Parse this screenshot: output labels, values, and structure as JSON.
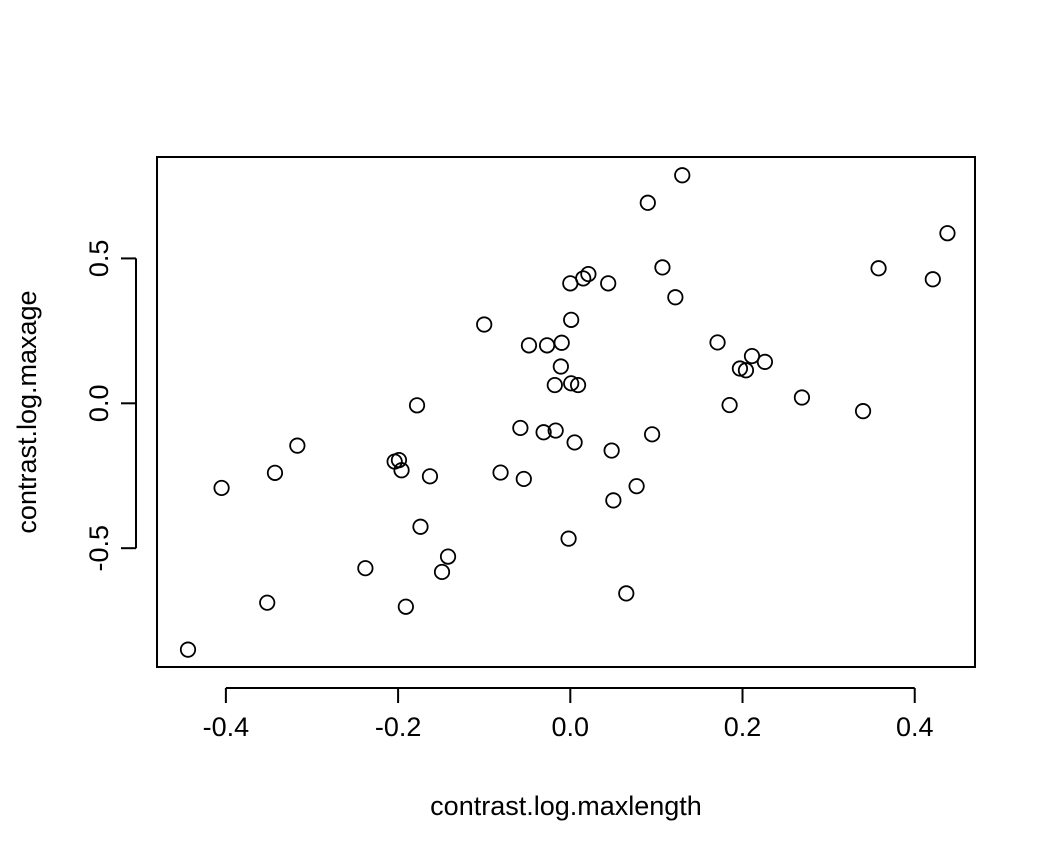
{
  "chart_data": {
    "type": "scatter",
    "title": "",
    "xlabel": "contrast.log.maxlength",
    "ylabel": "contrast.log.maxage",
    "xlim": [
      -0.48,
      0.47
    ],
    "ylim": [
      -0.91,
      0.85
    ],
    "xticks": [
      -0.4,
      -0.2,
      0.0,
      0.2,
      0.4
    ],
    "xtick_labels": [
      "-0.4",
      "-0.2",
      "0.0",
      "0.2",
      "0.4"
    ],
    "yticks": [
      -0.5,
      0.0,
      0.5
    ],
    "ytick_labels": [
      "-0.5",
      "0.0",
      "0.5"
    ],
    "grid": false,
    "legend": "none",
    "marker": "open-circle",
    "points": [
      {
        "x": -0.444,
        "y": -0.85
      },
      {
        "x": -0.405,
        "y": -0.292
      },
      {
        "x": -0.352,
        "y": -0.688
      },
      {
        "x": -0.343,
        "y": -0.24
      },
      {
        "x": -0.317,
        "y": -0.146
      },
      {
        "x": -0.238,
        "y": -0.569
      },
      {
        "x": -0.204,
        "y": -0.201
      },
      {
        "x": -0.199,
        "y": -0.196
      },
      {
        "x": -0.196,
        "y": -0.231
      },
      {
        "x": -0.191,
        "y": -0.702
      },
      {
        "x": -0.178,
        "y": -0.007
      },
      {
        "x": -0.174,
        "y": -0.426
      },
      {
        "x": -0.163,
        "y": -0.252
      },
      {
        "x": -0.149,
        "y": -0.582
      },
      {
        "x": -0.142,
        "y": -0.529
      },
      {
        "x": -0.1,
        "y": 0.272
      },
      {
        "x": -0.081,
        "y": -0.239
      },
      {
        "x": -0.058,
        "y": -0.085
      },
      {
        "x": -0.054,
        "y": -0.261
      },
      {
        "x": -0.048,
        "y": 0.2
      },
      {
        "x": -0.031,
        "y": -0.1
      },
      {
        "x": -0.027,
        "y": 0.2
      },
      {
        "x": -0.018,
        "y": 0.063
      },
      {
        "x": -0.017,
        "y": -0.094
      },
      {
        "x": -0.011,
        "y": 0.127
      },
      {
        "x": -0.01,
        "y": 0.209
      },
      {
        "x": -0.002,
        "y": -0.467
      },
      {
        "x": 0.0,
        "y": 0.414
      },
      {
        "x": 0.001,
        "y": 0.288
      },
      {
        "x": 0.001,
        "y": 0.069
      },
      {
        "x": 0.005,
        "y": -0.135
      },
      {
        "x": 0.009,
        "y": 0.063
      },
      {
        "x": 0.015,
        "y": 0.431
      },
      {
        "x": 0.021,
        "y": 0.446
      },
      {
        "x": 0.044,
        "y": 0.414
      },
      {
        "x": 0.048,
        "y": -0.163
      },
      {
        "x": 0.05,
        "y": -0.335
      },
      {
        "x": 0.065,
        "y": -0.656
      },
      {
        "x": 0.077,
        "y": -0.286
      },
      {
        "x": 0.09,
        "y": 0.692
      },
      {
        "x": 0.095,
        "y": -0.107
      },
      {
        "x": 0.107,
        "y": 0.469
      },
      {
        "x": 0.122,
        "y": 0.366
      },
      {
        "x": 0.13,
        "y": 0.787
      },
      {
        "x": 0.171,
        "y": 0.21
      },
      {
        "x": 0.185,
        "y": -0.006
      },
      {
        "x": 0.197,
        "y": 0.12
      },
      {
        "x": 0.204,
        "y": 0.114
      },
      {
        "x": 0.211,
        "y": 0.163
      },
      {
        "x": 0.226,
        "y": 0.143
      },
      {
        "x": 0.269,
        "y": 0.02
      },
      {
        "x": 0.34,
        "y": -0.027
      },
      {
        "x": 0.358,
        "y": 0.466
      },
      {
        "x": 0.421,
        "y": 0.428
      },
      {
        "x": 0.438,
        "y": 0.587
      }
    ]
  }
}
